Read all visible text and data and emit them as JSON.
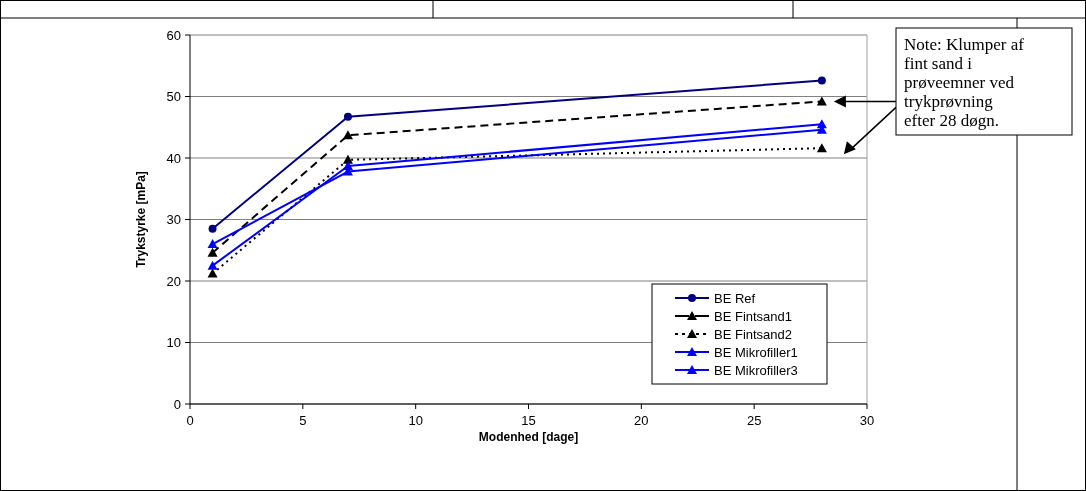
{
  "chart_data": {
    "type": "line",
    "xlabel": "Modenhed [dage]",
    "ylabel": "Trykstyrke [mPa]",
    "x": [
      1,
      7,
      28
    ],
    "series": [
      {
        "name": "BE Ref",
        "color": "#000080",
        "values": [
          28.5,
          46.7,
          52.6
        ],
        "marker": "circle",
        "line_style": "solid"
      },
      {
        "name": "BE Fintsand1",
        "color": "#000000",
        "values": [
          24.6,
          43.7,
          49.2
        ],
        "marker": "triangle",
        "line_style": "dashed"
      },
      {
        "name": "BE Fintsand2",
        "color": "#000000",
        "values": [
          21.2,
          39.7,
          41.6
        ],
        "marker": "triangle",
        "line_style": "dotted"
      },
      {
        "name": "BE Mikrofiller1",
        "color": "#0000ff",
        "values": [
          22.5,
          38.7,
          45.5
        ],
        "marker": "triangle",
        "line_style": "solid"
      },
      {
        "name": "BE Mikrofiller3",
        "color": "#0000ff",
        "values": [
          26.0,
          37.8,
          44.6
        ],
        "marker": "triangle",
        "line_style": "solid"
      }
    ],
    "xlim": [
      0,
      30
    ],
    "xticks": [
      0,
      5,
      10,
      15,
      20,
      25,
      30
    ],
    "ylim": [
      0,
      60
    ],
    "yticks": [
      0,
      10,
      20,
      30,
      40,
      50,
      60
    ],
    "grid": "y",
    "legend": "bottom right",
    "annotations": [
      "Note: Klumper af fint sand i prøveemner ved trykprøvning efter 28 døgn."
    ]
  }
}
